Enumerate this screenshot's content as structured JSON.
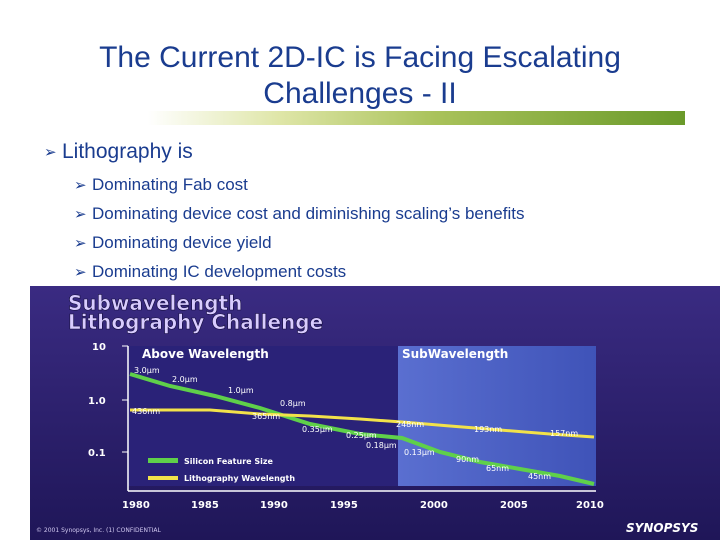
{
  "slide": {
    "title_line1": "The Current 2D-IC is Facing Escalating",
    "title_line2": "Challenges - II",
    "main_bullet": "Lithography is",
    "sub_bullets": [
      "Dominating Fab cost",
      "Dominating device cost and diminishing scaling’s benefits",
      "Dominating device yield",
      "Dominating IC development costs"
    ],
    "colors": {
      "title": "#1a3c8f",
      "figure_bg": "#2b1f6e"
    }
  },
  "figure": {
    "title_line1": "Subwavelength",
    "title_line2": "Lithography Challenge",
    "region_left": "Above Wavelength",
    "region_right": "SubWavelength",
    "y_ticks": [
      "10",
      "1.0",
      "0.1"
    ],
    "x_ticks": [
      "1980",
      "1985",
      "1990",
      "1995",
      "2000",
      "2005",
      "2010"
    ],
    "legend_feature": "Silicon Feature Size",
    "legend_wavelength": "Lithography Wavelength",
    "feature_labels": [
      "3.0µm",
      "2.0µm",
      "1.0µm",
      "0.8µm",
      "0.35µm",
      "0.25µm",
      "0.18µm",
      "0.13µm",
      "90nm",
      "65nm",
      "45nm"
    ],
    "wavelength_labels": [
      "436nm",
      "365nm",
      "248nm",
      "193nm",
      "157nm"
    ],
    "copyright": "© 2001 Synopsys, Inc. (1) CONFIDENTIAL",
    "logo": "SYNOPSYS"
  }
}
